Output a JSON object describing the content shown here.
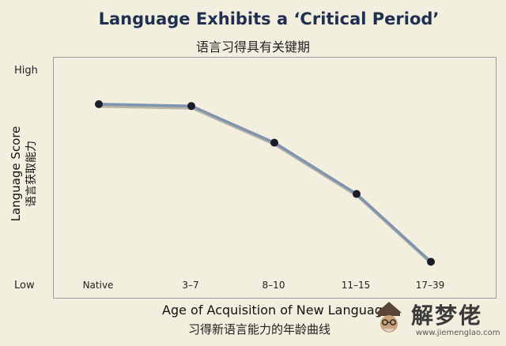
{
  "chart_data": {
    "type": "line",
    "title": "Language Exhibits a ‘Critical Period’",
    "subtitle": "语言习得具有关键期",
    "xlabel": "Age of Acquisition of New Language",
    "xlabel_zh": "习得新语言能力的年龄曲线",
    "ylabel": "Language Score",
    "ylabel_zh": "语言获取能力",
    "yticks": [
      "High",
      "Low"
    ],
    "ylim": [
      0,
      100
    ],
    "categories": [
      "Native",
      "3–7",
      "8–10",
      "11–15",
      "17–39"
    ],
    "series": [
      {
        "values": [
          91,
          90,
          70,
          42,
          5
        ]
      }
    ],
    "grid": false,
    "line_color": "#7f94b0",
    "marker_color": "#1b1b2a"
  },
  "watermark": {
    "text": "解梦佬",
    "url": "www.jiemenglao.com"
  }
}
